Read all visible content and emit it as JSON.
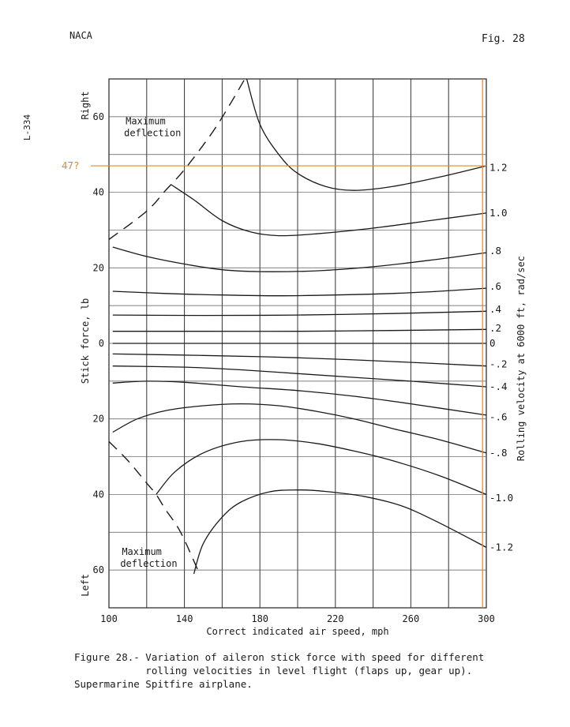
{
  "header": {
    "left": "NACA",
    "right": "Fig. 28"
  },
  "side_code": "L-334",
  "caption": {
    "lines": [
      "Figure 28.- Variation of aileron stick force with speed for different",
      "            rolling velocities in level flight (flaps up, gear up).",
      "Supermarine Spitfire airplane."
    ]
  },
  "chart_data": {
    "type": "line",
    "xlabel": "Correct indicated air speed, mph",
    "ylabel": "Stick force, lb",
    "y2label": "Rolling velocity at 6000 ft, rad/sec",
    "y_direction_labels": {
      "top": "Right",
      "bottom": "Left"
    },
    "xlim": [
      100,
      300
    ],
    "ylim": [
      -70,
      70
    ],
    "x_ticks": [
      100,
      140,
      180,
      220,
      260,
      300
    ],
    "y_ticks": [
      {
        "value": 60,
        "label": "60"
      },
      {
        "value": 40,
        "label": "40"
      },
      {
        "value": 20,
        "label": "20"
      },
      {
        "value": 0,
        "label": "0"
      },
      {
        "value": -20,
        "label": "20"
      },
      {
        "value": -40,
        "label": "40"
      },
      {
        "value": -60,
        "label": "60"
      }
    ],
    "grid": true,
    "annotations": [
      {
        "text": "Maximum\ndeflection",
        "x": 108,
        "y": 58
      },
      {
        "text": "Maximum\ndeflection",
        "x": 106,
        "y": -56
      },
      {
        "text": "47?",
        "y": 47,
        "color": "#e8842c"
      }
    ],
    "highlight": {
      "color": "#e8842c",
      "x": 298,
      "y": 47
    },
    "series": [
      {
        "label": "1.2",
        "label_y": 46.5,
        "points": [
          [
            173,
            70
          ],
          [
            180,
            58
          ],
          [
            190,
            50
          ],
          [
            200,
            45
          ],
          [
            215,
            41.5
          ],
          [
            230,
            40.5
          ],
          [
            250,
            41.5
          ],
          [
            275,
            44
          ],
          [
            300,
            47
          ]
        ]
      },
      {
        "label": "1.0",
        "label_y": 34.5,
        "points": [
          [
            133,
            42
          ],
          [
            145,
            38
          ],
          [
            160,
            32.5
          ],
          [
            175,
            29.5
          ],
          [
            190,
            28.5
          ],
          [
            210,
            29
          ],
          [
            240,
            30.5
          ],
          [
            270,
            32.5
          ],
          [
            300,
            34.5
          ]
        ]
      },
      {
        "label": ".8",
        "label_y": 24.5,
        "points": [
          [
            102,
            25.5
          ],
          [
            120,
            23
          ],
          [
            140,
            21
          ],
          [
            160,
            19.5
          ],
          [
            180,
            19
          ],
          [
            210,
            19.2
          ],
          [
            240,
            20.3
          ],
          [
            270,
            22
          ],
          [
            300,
            24
          ]
        ]
      },
      {
        "label": ".6",
        "label_y": 15,
        "points": [
          [
            102,
            13.8
          ],
          [
            130,
            13.2
          ],
          [
            160,
            12.8
          ],
          [
            190,
            12.6
          ],
          [
            220,
            12.8
          ],
          [
            250,
            13.2
          ],
          [
            275,
            13.8
          ],
          [
            300,
            14.6
          ]
        ]
      },
      {
        "label": ".4",
        "label_y": 9,
        "points": [
          [
            102,
            7.5
          ],
          [
            150,
            7.4
          ],
          [
            200,
            7.5
          ],
          [
            250,
            7.9
          ],
          [
            300,
            8.5
          ]
        ]
      },
      {
        "label": ".2",
        "label_y": 4,
        "points": [
          [
            102,
            3.2
          ],
          [
            150,
            3.2
          ],
          [
            200,
            3.2
          ],
          [
            250,
            3.4
          ],
          [
            300,
            3.7
          ]
        ]
      },
      {
        "label": "0",
        "label_y": 0,
        "points": [
          [
            102,
            0
          ],
          [
            300,
            0
          ]
        ]
      },
      {
        "label": "-.2",
        "label_y": -5.5,
        "points": [
          [
            102,
            -2.8
          ],
          [
            150,
            -3.2
          ],
          [
            200,
            -3.8
          ],
          [
            250,
            -4.8
          ],
          [
            300,
            -6
          ]
        ]
      },
      {
        "label": "-.4",
        "label_y": -11.5,
        "points": [
          [
            102,
            -6
          ],
          [
            140,
            -6.3
          ],
          [
            170,
            -7
          ],
          [
            200,
            -8
          ],
          [
            230,
            -9
          ],
          [
            260,
            -10
          ],
          [
            300,
            -11.5
          ]
        ]
      },
      {
        "label": "-.6",
        "label_y": -19.5,
        "points": [
          [
            102,
            -10.5
          ],
          [
            120,
            -10
          ],
          [
            140,
            -10.3
          ],
          [
            170,
            -11.5
          ],
          [
            200,
            -12.5
          ],
          [
            230,
            -14
          ],
          [
            260,
            -16
          ],
          [
            300,
            -19
          ]
        ]
      },
      {
        "label": "-.8",
        "label_y": -29,
        "points": [
          [
            102,
            -23.5
          ],
          [
            115,
            -20
          ],
          [
            130,
            -17.8
          ],
          [
            150,
            -16.5
          ],
          [
            170,
            -16
          ],
          [
            190,
            -16.5
          ],
          [
            210,
            -18
          ],
          [
            230,
            -20
          ],
          [
            250,
            -22.5
          ],
          [
            275,
            -25.5
          ],
          [
            300,
            -29
          ]
        ]
      },
      {
        "label": "-1.0",
        "label_y": -41,
        "points": [
          [
            125,
            -40
          ],
          [
            135,
            -34
          ],
          [
            150,
            -29
          ],
          [
            170,
            -26
          ],
          [
            190,
            -25.5
          ],
          [
            210,
            -26.5
          ],
          [
            230,
            -28.5
          ],
          [
            250,
            -31
          ],
          [
            275,
            -35
          ],
          [
            300,
            -40
          ]
        ]
      },
      {
        "label": "-1.2",
        "label_y": -54,
        "points": [
          [
            145,
            -61
          ],
          [
            150,
            -53
          ],
          [
            160,
            -46
          ],
          [
            170,
            -42
          ],
          [
            185,
            -39.3
          ],
          [
            200,
            -38.8
          ],
          [
            215,
            -39.2
          ],
          [
            235,
            -40.5
          ],
          [
            255,
            -43
          ],
          [
            275,
            -47.5
          ],
          [
            300,
            -54
          ]
        ]
      }
    ],
    "boundary_series": [
      {
        "name": "max_deflection_right",
        "dash": true,
        "points": [
          [
            100,
            27.5
          ],
          [
            120,
            35
          ],
          [
            130,
            40.5
          ],
          [
            140,
            46
          ],
          [
            155,
            56
          ],
          [
            165,
            64
          ],
          [
            172,
            70
          ]
        ]
      },
      {
        "name": "max_deflection_left",
        "dash": true,
        "points": [
          [
            100,
            -26
          ],
          [
            110,
            -31
          ],
          [
            120,
            -37
          ],
          [
            125,
            -40
          ],
          [
            130,
            -44
          ],
          [
            138,
            -50
          ],
          [
            148,
            -61
          ]
        ]
      }
    ]
  }
}
